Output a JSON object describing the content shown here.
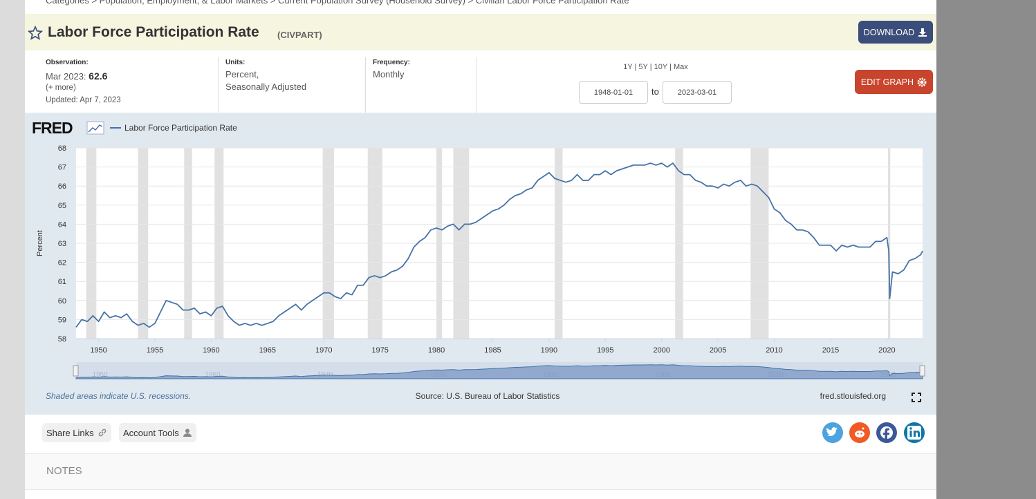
{
  "breadcrumb": "Categories > Population, Employment, & Labor Markets > Current Population Survey (Household Survey) > Civilian Labor Force Participation Rate",
  "header": {
    "title": "Labor Force Participation Rate",
    "series_id": "(CIVPART)",
    "download": "DOWNLOAD"
  },
  "meta": {
    "observation_label": "Observation:",
    "observation_date": "Mar 2023:",
    "observation_value": 62.6,
    "more": "(+ more)",
    "updated": "Updated: Apr 7, 2023",
    "units_label": "Units:",
    "units_1": "Percent,",
    "units_2": "Seasonally Adjusted",
    "frequency_label": "Frequency:",
    "frequency": "Monthly"
  },
  "range": {
    "presets": "1Y | 5Y | 10Y | Max",
    "start": "1948-01-01",
    "to": "to",
    "end": "2023-03-01",
    "edit": "EDIT GRAPH"
  },
  "chart_data": {
    "type": "line",
    "logo": "FRED",
    "ylabel": "Percent",
    "grid": true,
    "xlim": [
      1948,
      2023.17
    ],
    "xticks": [
      1950,
      1955,
      1960,
      1965,
      1970,
      1975,
      1980,
      1985,
      1990,
      1995,
      2000,
      2005,
      2010,
      2015,
      2020
    ],
    "ylim": [
      58,
      68
    ],
    "yticks": [
      58,
      59,
      60,
      61,
      62,
      63,
      64,
      65,
      66,
      67,
      68
    ],
    "recession_color": "#e1e1e1",
    "recessions": [
      [
        1948.9,
        1949.8
      ],
      [
        1953.5,
        1954.4
      ],
      [
        1957.6,
        1958.3
      ],
      [
        1960.3,
        1961.1
      ],
      [
        1969.9,
        1970.9
      ],
      [
        1973.9,
        1975.2
      ],
      [
        1980.0,
        1980.5
      ],
      [
        1981.5,
        1982.9
      ],
      [
        1990.5,
        1991.2
      ],
      [
        2001.2,
        2001.9
      ],
      [
        2007.9,
        2009.5
      ],
      [
        2020.1,
        2020.3
      ]
    ],
    "x": [
      1948.0,
      1948.5,
      1949.0,
      1949.5,
      1950.0,
      1950.5,
      1951.0,
      1951.5,
      1952.0,
      1952.5,
      1953.0,
      1953.5,
      1954.0,
      1954.5,
      1955.0,
      1955.5,
      1956.0,
      1956.5,
      1957.0,
      1957.5,
      1958.0,
      1958.5,
      1959.0,
      1959.5,
      1960.0,
      1960.5,
      1961.0,
      1961.5,
      1962.0,
      1962.5,
      1963.0,
      1963.5,
      1964.0,
      1964.5,
      1965.0,
      1965.5,
      1966.0,
      1966.5,
      1967.0,
      1967.5,
      1968.0,
      1968.5,
      1969.0,
      1969.5,
      1970.0,
      1970.5,
      1971.0,
      1971.5,
      1972.0,
      1972.5,
      1973.0,
      1973.5,
      1974.0,
      1974.5,
      1975.0,
      1975.5,
      1976.0,
      1976.5,
      1977.0,
      1977.5,
      1978.0,
      1978.5,
      1979.0,
      1979.5,
      1980.0,
      1980.5,
      1981.0,
      1981.5,
      1982.0,
      1982.5,
      1983.0,
      1983.5,
      1984.0,
      1984.5,
      1985.0,
      1985.5,
      1986.0,
      1986.5,
      1987.0,
      1987.5,
      1988.0,
      1988.5,
      1989.0,
      1989.5,
      1990.0,
      1990.5,
      1991.0,
      1991.5,
      1992.0,
      1992.5,
      1993.0,
      1993.5,
      1994.0,
      1994.5,
      1995.0,
      1995.5,
      1996.0,
      1996.5,
      1997.0,
      1997.5,
      1998.0,
      1998.5,
      1999.0,
      1999.5,
      2000.0,
      2000.5,
      2001.0,
      2001.5,
      2002.0,
      2002.5,
      2003.0,
      2003.5,
      2004.0,
      2004.5,
      2005.0,
      2005.5,
      2006.0,
      2006.5,
      2007.0,
      2007.5,
      2008.0,
      2008.5,
      2009.0,
      2009.5,
      2010.0,
      2010.5,
      2011.0,
      2011.5,
      2012.0,
      2012.5,
      2013.0,
      2013.5,
      2014.0,
      2014.5,
      2015.0,
      2015.5,
      2016.0,
      2016.5,
      2017.0,
      2017.5,
      2018.0,
      2018.5,
      2019.0,
      2019.5,
      2020.0,
      2020.17,
      2020.25,
      2020.5,
      2021.0,
      2021.5,
      2022.0,
      2022.5,
      2023.0,
      2023.17
    ],
    "series": [
      {
        "name": "Labor Force Participation Rate",
        "color": "#4572a7",
        "values": [
          58.6,
          59.0,
          58.9,
          59.2,
          58.9,
          59.4,
          59.1,
          59.2,
          59.1,
          59.3,
          58.9,
          58.7,
          58.8,
          58.6,
          58.8,
          59.4,
          60.0,
          59.9,
          59.8,
          59.5,
          59.5,
          59.6,
          59.3,
          59.4,
          59.2,
          59.6,
          59.7,
          59.2,
          58.9,
          58.7,
          58.8,
          58.7,
          58.8,
          58.7,
          58.8,
          58.9,
          59.2,
          59.4,
          59.6,
          59.8,
          59.5,
          59.8,
          60.0,
          60.2,
          60.4,
          60.4,
          60.2,
          60.1,
          60.4,
          60.3,
          60.8,
          60.8,
          61.2,
          61.3,
          61.2,
          61.3,
          61.5,
          61.6,
          61.8,
          62.2,
          62.8,
          63.1,
          63.3,
          63.7,
          63.8,
          63.7,
          63.9,
          64.0,
          63.7,
          64.0,
          64.0,
          64.1,
          64.3,
          64.5,
          64.7,
          64.8,
          65.0,
          65.3,
          65.5,
          65.6,
          65.8,
          65.9,
          66.3,
          66.5,
          66.7,
          66.4,
          66.3,
          66.2,
          66.3,
          66.6,
          66.3,
          66.3,
          66.6,
          66.6,
          66.8,
          66.6,
          66.8,
          66.9,
          67.0,
          67.1,
          67.1,
          67.1,
          67.2,
          67.1,
          67.2,
          67.0,
          67.2,
          66.8,
          66.6,
          66.6,
          66.3,
          66.2,
          66.0,
          66.0,
          65.9,
          66.1,
          66.0,
          66.2,
          66.3,
          66.0,
          66.1,
          66.0,
          65.7,
          65.4,
          64.8,
          64.6,
          64.2,
          64.0,
          63.7,
          63.7,
          63.6,
          63.3,
          62.9,
          62.9,
          62.9,
          62.6,
          62.9,
          62.8,
          62.9,
          62.8,
          62.8,
          62.8,
          63.1,
          63.1,
          63.3,
          62.6,
          60.1,
          61.5,
          61.4,
          61.6,
          62.1,
          62.2,
          62.4,
          62.6
        ]
      }
    ],
    "note": "Shaded areas indicate U.S. recessions.",
    "source": "Source: U.S. Bureau of Labor Statistics",
    "site": "fred.stlouisfed.org"
  },
  "share": {
    "share_links": "Share Links",
    "account_tools": "Account Tools"
  },
  "notes": "NOTES"
}
